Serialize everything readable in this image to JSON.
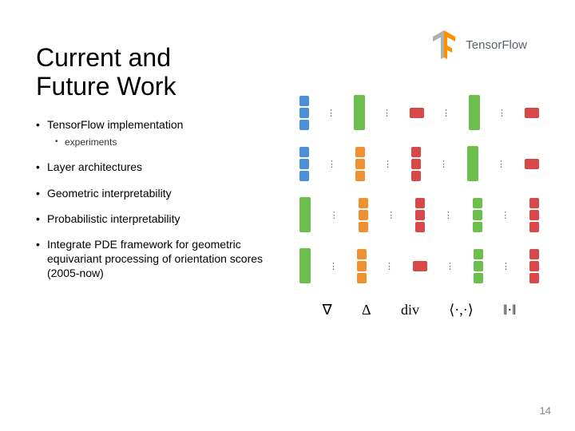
{
  "page_number": "14",
  "title": "Current and Future Work",
  "logo_text": "TensorFlow",
  "bullets": {
    "b1": "TensorFlow implementation",
    "b1_sub": "experiments",
    "b2": "Layer architectures",
    "b3": "Geometric interpretability",
    "b4": "Probabilistic interpretability",
    "b5": "Integrate PDE framework for geometric equivariant processing of orientation scores (2005-now)"
  },
  "operators": {
    "grad": "∇",
    "lap": "Δ",
    "div": "div",
    "inner": "⟨·,·⟩",
    "norm": "‖·‖"
  },
  "colors": {
    "blue": "#4a8fd8",
    "green": "#6bbf4a",
    "orange": "#f09030",
    "red": "#d84848",
    "tf_orange": "#ff8f00",
    "tf_grey": "#b0b0b0"
  },
  "diagram": {
    "rows": [
      {
        "left_color": "blue",
        "left_count": 3,
        "mid1_color": "green",
        "mid1_tall": true,
        "center_color": "red",
        "center_count": 1,
        "mid2_color": "green",
        "mid2_tall": true,
        "right_color": "red",
        "right_count": 1
      },
      {
        "left_color": "blue",
        "left_count": 3,
        "mid1_color": "orange",
        "mid1_tall": false,
        "center_color": "red",
        "center_count": 3,
        "mid2_color": "green",
        "mid2_tall": true,
        "right_color": "red",
        "right_count": 1
      },
      {
        "left_color": "green",
        "left_count": 1,
        "left_tall": true,
        "mid1_color": "orange",
        "mid1_tall": false,
        "center_color": "red",
        "center_count": 3,
        "mid2_color": "green",
        "mid2_tall": false,
        "right_color": "red",
        "right_count": 3
      },
      {
        "left_color": "green",
        "left_count": 1,
        "left_tall": true,
        "mid1_color": "orange",
        "mid1_tall": false,
        "center_color": "red",
        "center_count": 1,
        "mid2_color": "green",
        "mid2_tall": false,
        "right_color": "red",
        "right_count": 3
      }
    ]
  }
}
